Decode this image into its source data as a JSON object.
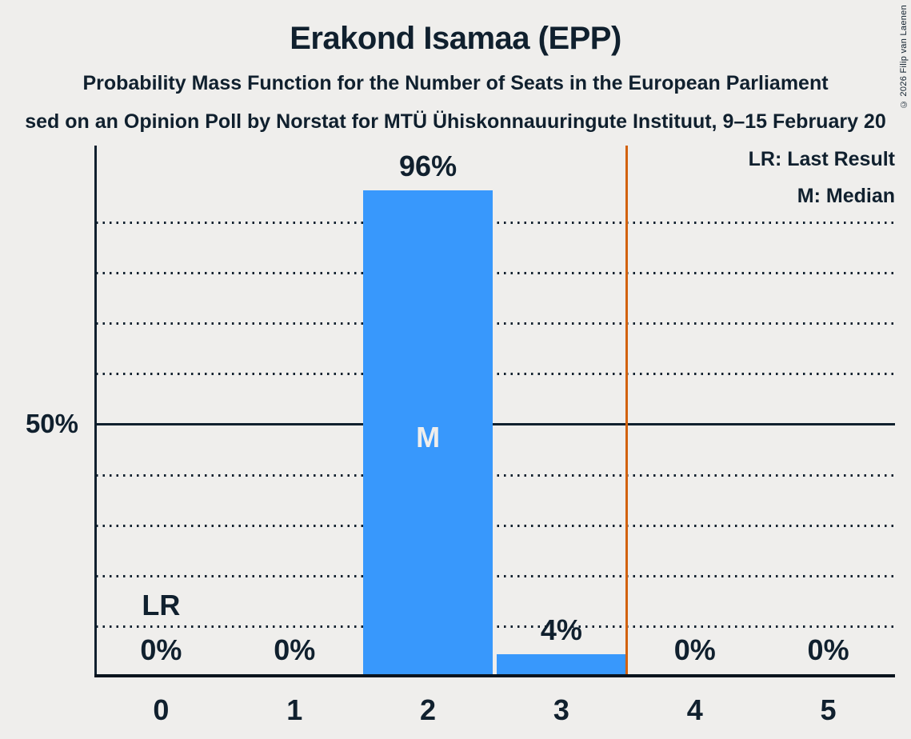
{
  "header": {
    "title": "Erakond Isamaa (EPP)",
    "subtitle": "Probability Mass Function for the Number of Seats in the European Parliament",
    "subtitle2": "sed on an Opinion Poll by Norstat for MTÜ Ühiskonnauuringute Instituut, 9–15 February 20",
    "copyright": "© 2026 Filip van Laenen"
  },
  "legend": {
    "lr": "LR: Last Result",
    "m": "M: Median"
  },
  "y_axis": {
    "label_50": "50%"
  },
  "annotations": {
    "last_result": "LR",
    "median": "M"
  },
  "chart_data": {
    "type": "bar",
    "title": "Erakond Isamaa (EPP)",
    "xlabel": "",
    "ylabel": "",
    "categories": [
      "0",
      "1",
      "2",
      "3",
      "4",
      "5"
    ],
    "values": [
      0,
      0,
      96,
      4,
      0,
      0
    ],
    "value_labels": [
      "0%",
      "0%",
      "96%",
      "4%",
      "0%",
      "0%"
    ],
    "ylim": [
      0,
      105
    ],
    "ytick_labeled": [
      50
    ],
    "gridlines_dotted_pct": [
      10,
      20,
      30,
      40,
      60,
      70,
      80,
      90
    ],
    "gridline_solid_pct": 50,
    "last_result_seats": 0,
    "median_seats": 2,
    "vertical_line_x": 3.5,
    "legend_position": "top-right",
    "colors": {
      "background": "#efeeec",
      "text": "#10202e",
      "bar": "#3898fc",
      "vertical_line": "#d2610b",
      "median_label": "#efeeec"
    }
  }
}
